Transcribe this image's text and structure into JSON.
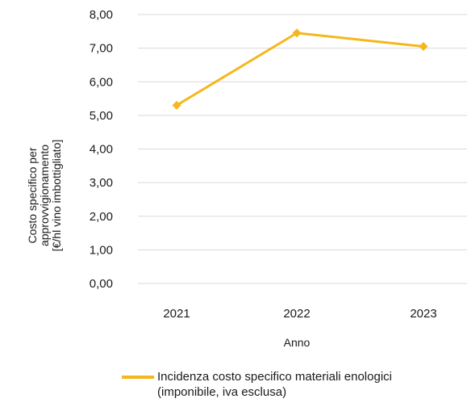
{
  "chart_data": {
    "type": "line",
    "x": [
      "2021",
      "2022",
      "2023"
    ],
    "series": [
      {
        "name_lines": [
          "Incidenza costo specifico materiali enologici",
          "(imponibile, iva esclusa)"
        ],
        "values": [
          5.3,
          7.45,
          7.05
        ],
        "color": "#f4b81c"
      }
    ],
    "xlabel": "Anno",
    "ylabel_lines": [
      "Costo specifico per",
      "approvvigionamento",
      "[€/hl vino imbottigliato]"
    ],
    "yticks": [
      "0,00",
      "1,00",
      "2,00",
      "3,00",
      "4,00",
      "5,00",
      "6,00",
      "7,00",
      "8,00"
    ],
    "ylim": [
      0,
      8
    ],
    "grid": true,
    "legend_position": "bottom"
  }
}
